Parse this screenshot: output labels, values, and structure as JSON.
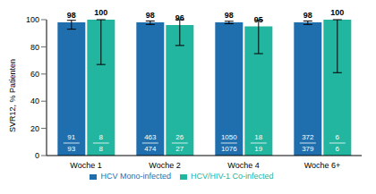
{
  "chart_data": {
    "type": "bar",
    "y_label": "SVR12, % Patienten",
    "categories": [
      "Woche 1",
      "Woche 2",
      "Woche 4",
      "Woche 6+"
    ],
    "series": [
      {
        "name": "HCV Mono-infected",
        "color": "#1f6fae",
        "values": [
          98,
          98,
          98,
          98
        ],
        "errors": [
          [
            5,
            1.5
          ],
          [
            1.5,
            1
          ],
          [
            1,
            0.8
          ],
          [
            1.5,
            1
          ]
        ],
        "responders": [
          91,
          463,
          1050,
          372
        ],
        "patients": [
          93,
          474,
          1076,
          379
        ]
      },
      {
        "name": "HCV/HIV-1 Co-infected",
        "color": "#22b5a0",
        "values": [
          100,
          96,
          95,
          100
        ],
        "errors": [
          [
            33,
            0
          ],
          [
            15,
            4
          ],
          [
            20,
            4.5
          ],
          [
            39,
            0
          ]
        ],
        "responders": [
          8,
          26,
          18,
          6
        ],
        "patients": [
          8,
          27,
          19,
          6
        ]
      }
    ],
    "ylim": [
      0,
      100
    ],
    "yticks": [
      0,
      20,
      40,
      60,
      80,
      100
    ],
    "data_labels": true,
    "legend": "bottom",
    "grid": false
  }
}
